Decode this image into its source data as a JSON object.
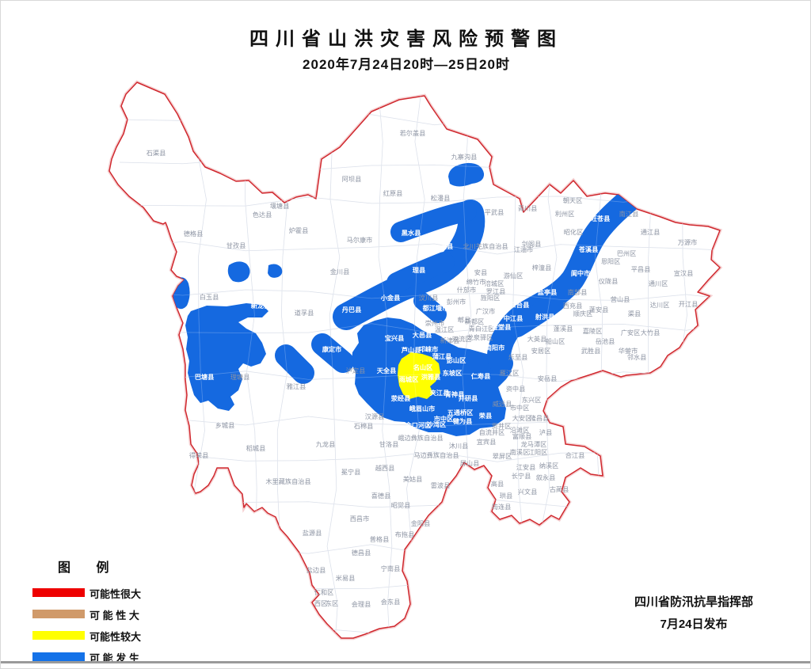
{
  "title": "四川省山洪灾害风险预警图",
  "subtitle": "2020年7月24日20时—25日20时",
  "legend": {
    "title": "图  例",
    "items": [
      {
        "label": "可能性很大",
        "color": "#ee0000"
      },
      {
        "label": "可 能 性 大",
        "color": "#d09a6a"
      },
      {
        "label": "可能性较大",
        "color": "#ffff00"
      },
      {
        "label": "可 能 发 生",
        "color": "#1472e8"
      }
    ]
  },
  "footer": {
    "issuer": "四川省防汛抗旱指挥部",
    "date": "7月24日发布"
  },
  "colors": {
    "risk_red": "#d0282e",
    "risk_blue": "#1569e0",
    "risk_yellow": "#ffff00",
    "county_line": "#ccd3e1",
    "label_gray": "#8d94a3",
    "label_white": "#ffffff"
  },
  "map": {
    "labels": [
      [
        "石渠县",
        196,
        195,
        "g"
      ],
      [
        "德格县",
        243,
        297,
        "g"
      ],
      [
        "甘孜县",
        297,
        312,
        "g"
      ],
      [
        "色达县",
        330,
        273,
        "g"
      ],
      [
        "壤塘县",
        352,
        262,
        "g"
      ],
      [
        "炉霍县",
        376,
        293,
        "g"
      ],
      [
        "白玉县",
        263,
        377,
        "g"
      ],
      [
        "新龙县",
        328,
        388,
        "w"
      ],
      [
        "道孚县",
        383,
        397,
        "g"
      ],
      [
        "理塘县",
        302,
        478,
        "g"
      ],
      [
        "巴塘县",
        257,
        478,
        "w"
      ],
      [
        "雅江县",
        373,
        490,
        "g"
      ],
      [
        "乡城县",
        283,
        539,
        "g"
      ],
      [
        "稻城县",
        322,
        568,
        "g"
      ],
      [
        "得荣县",
        250,
        577,
        "g"
      ],
      [
        "木里藏族自治县",
        363,
        610,
        "g"
      ],
      [
        "九龙县",
        410,
        563,
        "g"
      ],
      [
        "康定市",
        418,
        443,
        "w"
      ],
      [
        "泸定县",
        448,
        470,
        "g"
      ],
      [
        "阿坝县",
        443,
        228,
        "g"
      ],
      [
        "若尔盖县",
        520,
        170,
        "g"
      ],
      [
        "红原县",
        495,
        246,
        "g"
      ],
      [
        "九寨沟县",
        585,
        200,
        "g"
      ],
      [
        "松潘县",
        555,
        252,
        "g"
      ],
      [
        "平武县",
        623,
        270,
        "g"
      ],
      [
        "青川县",
        665,
        265,
        "g"
      ],
      [
        "马尔康市",
        453,
        305,
        "g"
      ],
      [
        "金川县",
        428,
        345,
        "g"
      ],
      [
        "黑水县",
        518,
        296,
        "w"
      ],
      [
        "茂县",
        563,
        313,
        "w"
      ],
      [
        "理县",
        528,
        343,
        "w"
      ],
      [
        "汶川县",
        540,
        378,
        "g"
      ],
      [
        "小金县",
        492,
        378,
        "w"
      ],
      [
        "丹巴县",
        443,
        393,
        "w"
      ],
      [
        "北川羌族自治县",
        612,
        313,
        "g"
      ],
      [
        "江油市",
        660,
        317,
        "g"
      ],
      [
        "梓潼县",
        683,
        340,
        "g"
      ],
      [
        "游仙区",
        647,
        350,
        "g"
      ],
      [
        "安县",
        606,
        346,
        "g"
      ],
      [
        "绵竹市",
        600,
        358,
        "g"
      ],
      [
        "涪城区",
        623,
        360,
        "g"
      ],
      [
        "罗江县",
        625,
        370,
        "g"
      ],
      [
        "什邡市",
        588,
        368,
        "g"
      ],
      [
        "旌阳区",
        618,
        378,
        "g"
      ],
      [
        "彭州市",
        575,
        383,
        "g"
      ],
      [
        "广汉市",
        612,
        395,
        "g"
      ],
      [
        "朝天区",
        722,
        255,
        "g"
      ],
      [
        "利州区",
        712,
        272,
        "g"
      ],
      [
        "旺苍县",
        757,
        278,
        "w"
      ],
      [
        "南江县",
        793,
        272,
        "g"
      ],
      [
        "昭化区",
        723,
        295,
        "g"
      ],
      [
        "剑阁县",
        670,
        310,
        "g"
      ],
      [
        "苍溪县",
        742,
        317,
        "w"
      ],
      [
        "通江县",
        820,
        295,
        "g"
      ],
      [
        "万源市",
        867,
        308,
        "g"
      ],
      [
        "巴州区",
        790,
        322,
        "g"
      ],
      [
        "恩阳区",
        770,
        332,
        "g"
      ],
      [
        "平昌县",
        808,
        342,
        "g"
      ],
      [
        "宣汉县",
        862,
        347,
        "g"
      ],
      [
        "阆中市",
        732,
        347,
        "w"
      ],
      [
        "仪陇县",
        767,
        357,
        "g"
      ],
      [
        "通川区",
        830,
        360,
        "g"
      ],
      [
        "南部县",
        728,
        371,
        "g"
      ],
      [
        "盐亭县",
        690,
        371,
        "w"
      ],
      [
        "三台县",
        655,
        387,
        "w"
      ],
      [
        "西充县",
        722,
        388,
        "g"
      ],
      [
        "营山县",
        782,
        380,
        "g"
      ],
      [
        "蓬安县",
        755,
        393,
        "g"
      ],
      [
        "达川区",
        832,
        387,
        "g"
      ],
      [
        "开江县",
        868,
        386,
        "g"
      ],
      [
        "渠县",
        800,
        398,
        "g"
      ],
      [
        "顺庆区",
        735,
        398,
        "g"
      ],
      [
        "射洪县",
        687,
        402,
        "w"
      ],
      [
        "中江县",
        647,
        404,
        "w"
      ],
      [
        "蓬溪县",
        710,
        417,
        "g"
      ],
      [
        "嘉陵区",
        747,
        420,
        "g"
      ],
      [
        "广安区",
        795,
        422,
        "g"
      ],
      [
        "大竹县",
        820,
        422,
        "g"
      ],
      [
        "大英县",
        677,
        430,
        "g"
      ],
      [
        "船山区",
        700,
        433,
        "g"
      ],
      [
        "岳池县",
        763,
        433,
        "g"
      ],
      [
        "武胜县",
        745,
        445,
        "g"
      ],
      [
        "华蓥市",
        792,
        445,
        "g"
      ],
      [
        "安居区",
        682,
        445,
        "g"
      ],
      [
        "邻水县",
        803,
        453,
        "g"
      ],
      [
        "都江堰市",
        549,
        391,
        "w"
      ],
      [
        "郫县",
        585,
        406,
        "g"
      ],
      [
        "新都区",
        598,
        408,
        "g"
      ],
      [
        "青白江区",
        607,
        417,
        "g"
      ],
      [
        "金堂县",
        632,
        415,
        "w"
      ],
      [
        "温江区",
        560,
        418,
        "g"
      ],
      [
        "崇州市",
        548,
        410,
        "g"
      ],
      [
        "龙泉驿区",
        605,
        428,
        "g"
      ],
      [
        "大邑县",
        532,
        425,
        "w"
      ],
      [
        "简阳市",
        624,
        441,
        "w"
      ],
      [
        "乐至县",
        653,
        453,
        "g"
      ],
      [
        "雁江区",
        642,
        473,
        "g"
      ],
      [
        "安岳县",
        690,
        480,
        "g"
      ],
      [
        "宝兴县",
        497,
        429,
        "w"
      ],
      [
        "芦山县",
        518,
        444,
        "w"
      ],
      [
        "邛崃市",
        540,
        443,
        "w"
      ],
      [
        "蒲江县",
        557,
        452,
        "w"
      ],
      [
        "彭山区",
        575,
        457,
        "w"
      ],
      [
        "新津县",
        567,
        432,
        "g"
      ],
      [
        "双流区",
        582,
        430,
        "g"
      ],
      [
        "天全县",
        487,
        470,
        "w"
      ],
      [
        "名山区",
        533,
        466,
        "w"
      ],
      [
        "雨城区",
        515,
        481,
        "w"
      ],
      [
        "洪雅县",
        543,
        478,
        "w"
      ],
      [
        "东坡区",
        570,
        473,
        "w"
      ],
      [
        "荥经县",
        505,
        505,
        "w"
      ],
      [
        "青神县",
        573,
        500,
        "w"
      ],
      [
        "夹江县",
        554,
        498,
        "w"
      ],
      [
        "仁寿县",
        606,
        477,
        "w"
      ],
      [
        "井研县",
        590,
        505,
        "w"
      ],
      [
        "峨眉山市",
        532,
        518,
        "w"
      ],
      [
        "五通桥区",
        580,
        523,
        "w"
      ],
      [
        "市中区",
        559,
        531,
        "w"
      ],
      [
        "沙湾区",
        550,
        538,
        "w"
      ],
      [
        "金口河区",
        527,
        539,
        "w"
      ],
      [
        "犍为县",
        583,
        534,
        "w"
      ],
      [
        "汉源县",
        472,
        528,
        "g"
      ],
      [
        "石棉县",
        458,
        540,
        "g"
      ],
      [
        "荣县",
        612,
        527,
        "w"
      ],
      [
        "威远县",
        633,
        512,
        "g"
      ],
      [
        "资中县",
        650,
        493,
        "g"
      ],
      [
        "市中区",
        655,
        517,
        "g"
      ],
      [
        "东兴区",
        670,
        507,
        "g"
      ],
      [
        "大安区",
        658,
        530,
        "g"
      ],
      [
        "贡井区",
        632,
        540,
        "g"
      ],
      [
        "自流井区",
        620,
        548,
        "g"
      ],
      [
        "沿滩区",
        655,
        545,
        "g"
      ],
      [
        "富顺县",
        658,
        553,
        "g"
      ],
      [
        "隆昌县",
        680,
        530,
        "g"
      ],
      [
        "甘洛县",
        490,
        563,
        "g"
      ],
      [
        "峨边彝族自治县",
        530,
        555,
        "g"
      ],
      [
        "马边彝族自治县",
        550,
        577,
        "g"
      ],
      [
        "沐川县",
        578,
        565,
        "g"
      ],
      [
        "屏山县",
        592,
        587,
        "g"
      ],
      [
        "宜宾县",
        613,
        560,
        "g"
      ],
      [
        "翠屏区",
        633,
        578,
        "g"
      ],
      [
        "南溪区",
        655,
        573,
        "g"
      ],
      [
        "江安县",
        663,
        592,
        "g"
      ],
      [
        "长宁县",
        657,
        603,
        "g"
      ],
      [
        "高县",
        627,
        613,
        "g"
      ],
      [
        "珙县",
        638,
        628,
        "g"
      ],
      [
        "筠连县",
        632,
        642,
        "g"
      ],
      [
        "兴文县",
        665,
        623,
        "g"
      ],
      [
        "叙永县",
        688,
        605,
        "g"
      ],
      [
        "古蔺县",
        705,
        620,
        "g"
      ],
      [
        "泸县",
        688,
        548,
        "g"
      ],
      [
        "龙马潭区",
        673,
        563,
        "g"
      ],
      [
        "江阳区",
        678,
        573,
        "g"
      ],
      [
        "纳溪区",
        692,
        590,
        "g"
      ],
      [
        "合江县",
        725,
        577,
        "g"
      ],
      [
        "冕宁县",
        442,
        598,
        "g"
      ],
      [
        "越西县",
        485,
        593,
        "g"
      ],
      [
        "美姑县",
        520,
        607,
        "g"
      ],
      [
        "雷波县",
        555,
        615,
        "g"
      ],
      [
        "喜德县",
        480,
        628,
        "g"
      ],
      [
        "昭觉县",
        505,
        640,
        "g"
      ],
      [
        "西昌市",
        453,
        657,
        "g"
      ],
      [
        "金阳县",
        530,
        663,
        "g"
      ],
      [
        "布拖县",
        510,
        677,
        "g"
      ],
      [
        "普格县",
        478,
        683,
        "g"
      ],
      [
        "德昌县",
        455,
        700,
        "g"
      ],
      [
        "宁南县",
        492,
        720,
        "g"
      ],
      [
        "盐源县",
        393,
        675,
        "g"
      ],
      [
        "盐边县",
        398,
        722,
        "g"
      ],
      [
        "米易县",
        435,
        732,
        "g"
      ],
      [
        "会理县",
        455,
        765,
        "g"
      ],
      [
        "会东县",
        492,
        762,
        "g"
      ],
      [
        "仁和区",
        408,
        750,
        "g"
      ],
      [
        "西区",
        404,
        764,
        "g"
      ],
      [
        "东区",
        418,
        764,
        "g"
      ]
    ]
  }
}
